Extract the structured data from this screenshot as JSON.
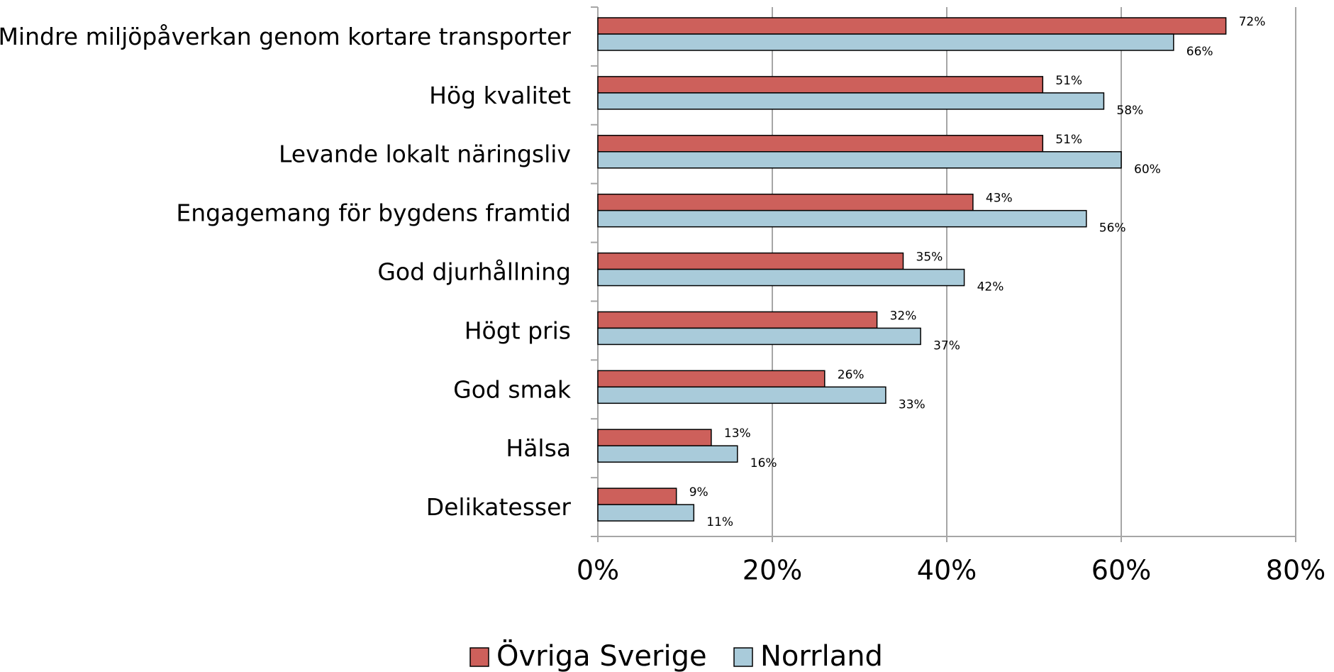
{
  "chart_data": {
    "type": "barh",
    "categories": [
      "Mindre miljöpåverkan genom kortare transporter",
      "Hög kvalitet",
      "Levande lokalt näringsliv",
      "Engagemang för bygdens framtid",
      "God djurhållning",
      "Högt pris",
      "God smak",
      "Hälsa",
      "Delikatesser"
    ],
    "series": [
      {
        "name": "Övriga Sverige",
        "color": "#cd605b",
        "values": [
          72,
          51,
          51,
          43,
          35,
          32,
          26,
          13,
          9
        ],
        "value_labels": [
          "72%",
          "51%",
          "51%",
          "43%",
          "35%",
          "32%",
          "26%",
          "13%",
          "9%"
        ]
      },
      {
        "name": "Norrland",
        "color": "#a9cbda",
        "values": [
          66,
          58,
          60,
          56,
          42,
          37,
          33,
          16,
          11
        ],
        "value_labels": [
          "66%",
          "58%",
          "60%",
          "56%",
          "42%",
          "37%",
          "33%",
          "16%",
          "11%"
        ]
      }
    ],
    "xlim": [
      0,
      80
    ],
    "xticks": [
      {
        "value": 0,
        "label": "0%"
      },
      {
        "value": 20,
        "label": "20%"
      },
      {
        "value": 40,
        "label": "40%"
      },
      {
        "value": 60,
        "label": "60%"
      },
      {
        "value": 80,
        "label": "80%"
      }
    ],
    "grid": true,
    "legend": "bottom"
  }
}
